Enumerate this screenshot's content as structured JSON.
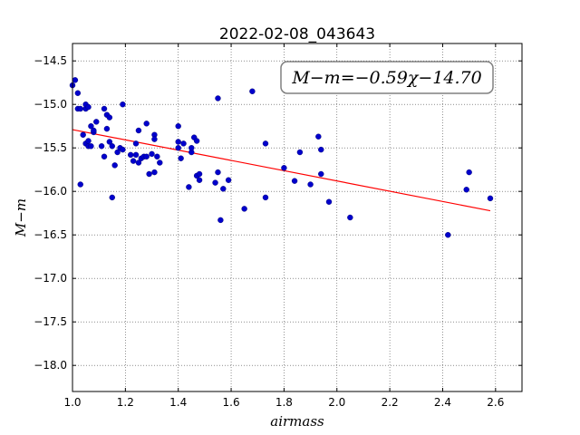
{
  "chart_data": {
    "type": "scatter",
    "title": "2022-02-08_043643",
    "xlabel": "airmass",
    "ylabel": "M−m",
    "xlim": [
      1.0,
      2.7
    ],
    "ylim": [
      -14.3,
      -18.3
    ],
    "y_inverted": true,
    "grid": true,
    "x_ticks": [
      "1.0",
      "1.2",
      "1.4",
      "1.6",
      "1.8",
      "2.0",
      "2.2",
      "2.4",
      "2.6"
    ],
    "y_ticks": [
      "−14.5",
      "−15.0",
      "−15.5",
      "−16.0",
      "−16.5",
      "−17.0",
      "−17.5",
      "−18.0"
    ],
    "annotation": "M−m=−0.59χ−14.70",
    "fit": {
      "slope": -0.59,
      "intercept": -14.7,
      "x_range": [
        1.0,
        2.58
      ],
      "color": "#ff0000"
    },
    "points_color": "#0000cc",
    "x": [
      1.0,
      1.01,
      1.02,
      1.02,
      1.03,
      1.03,
      1.04,
      1.05,
      1.05,
      1.05,
      1.06,
      1.06,
      1.06,
      1.07,
      1.07,
      1.08,
      1.08,
      1.09,
      1.11,
      1.12,
      1.12,
      1.13,
      1.13,
      1.14,
      1.14,
      1.15,
      1.15,
      1.16,
      1.17,
      1.18,
      1.19,
      1.19,
      1.22,
      1.23,
      1.24,
      1.24,
      1.25,
      1.25,
      1.26,
      1.27,
      1.28,
      1.28,
      1.29,
      1.3,
      1.31,
      1.31,
      1.31,
      1.32,
      1.33,
      1.4,
      1.4,
      1.4,
      1.41,
      1.42,
      1.44,
      1.45,
      1.45,
      1.46,
      1.47,
      1.47,
      1.48,
      1.48,
      1.54,
      1.55,
      1.55,
      1.56,
      1.57,
      1.59,
      1.65,
      1.68,
      1.73,
      1.73,
      1.8,
      1.84,
      1.86,
      1.9,
      1.93,
      1.94,
      1.94,
      1.97,
      2.05,
      2.42,
      2.49,
      2.5,
      2.58
    ],
    "y": [
      -14.78,
      -14.72,
      -15.05,
      -14.87,
      -15.92,
      -15.05,
      -15.35,
      -15.05,
      -15.45,
      -15.0,
      -15.03,
      -15.42,
      -15.48,
      -15.25,
      -15.48,
      -15.32,
      -15.3,
      -15.2,
      -15.48,
      -15.05,
      -15.6,
      -15.12,
      -15.28,
      -15.15,
      -15.43,
      -16.07,
      -15.48,
      -15.7,
      -15.55,
      -15.5,
      -15.0,
      -15.52,
      -15.58,
      -15.65,
      -15.45,
      -15.58,
      -15.67,
      -15.3,
      -15.62,
      -15.6,
      -15.22,
      -15.6,
      -15.8,
      -15.57,
      -15.35,
      -15.4,
      -15.78,
      -15.6,
      -15.67,
      -15.43,
      -15.5,
      -15.25,
      -15.62,
      -15.45,
      -15.95,
      -15.55,
      -15.5,
      -15.38,
      -15.42,
      -15.82,
      -15.8,
      -15.87,
      -15.9,
      -14.93,
      -15.78,
      -16.33,
      -15.97,
      -15.87,
      -16.2,
      -14.85,
      -16.07,
      -15.45,
      -15.73,
      -15.88,
      -15.55,
      -15.92,
      -15.37,
      -15.52,
      -15.8,
      -16.12,
      -16.3,
      -16.5,
      -15.98,
      -15.78,
      -16.08
    ]
  }
}
